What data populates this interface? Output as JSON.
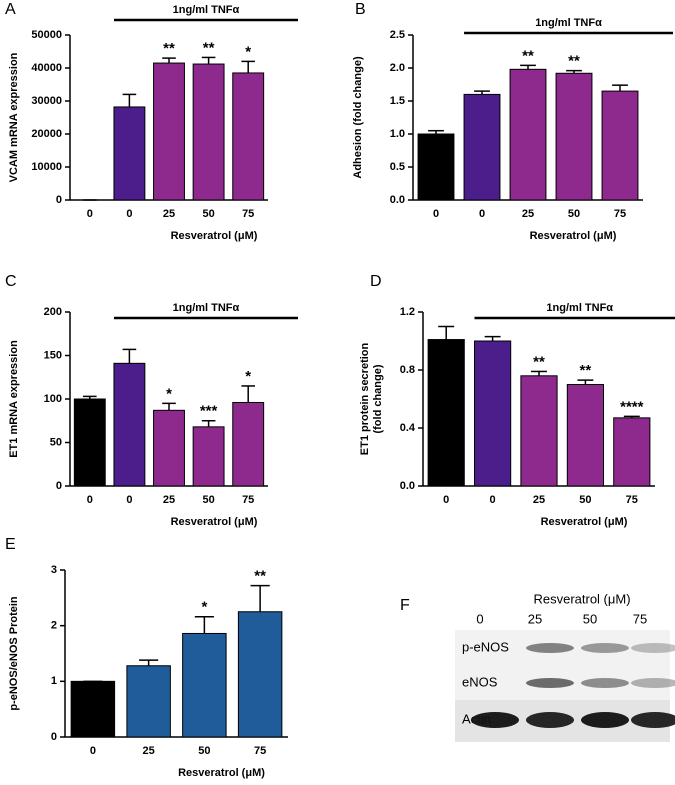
{
  "chart_data": [
    {
      "type": "bar",
      "panel": "A",
      "bracket_label": "1ng/ml TNFα",
      "xlabel": "Resveratrol (μM)",
      "ylabel": "VCAM mRNA expression",
      "categories": [
        "0",
        "0",
        "25",
        "50",
        "75"
      ],
      "values": [
        0,
        28200,
        41500,
        41200,
        38500
      ],
      "errors": [
        0,
        3800,
        1500,
        2000,
        3500
      ],
      "colors": [
        "#000000",
        "#4b1e8c",
        "#8e2a8e",
        "#8e2a8e",
        "#8e2a8e"
      ],
      "annotations": [
        null,
        null,
        "**",
        "**",
        "*"
      ],
      "ylim": [
        0,
        50000
      ],
      "yticks": [
        0,
        10000,
        20000,
        30000,
        40000,
        50000
      ]
    },
    {
      "type": "bar",
      "panel": "B",
      "bracket_label": "1ng/ml TNFα",
      "xlabel": "Resveratrol (μM)",
      "ylabel": "Adhesion (fold change)",
      "categories": [
        "0",
        "0",
        "25",
        "50",
        "75"
      ],
      "values": [
        1.0,
        1.6,
        1.98,
        1.92,
        1.65
      ],
      "errors": [
        0.05,
        0.05,
        0.06,
        0.04,
        0.09
      ],
      "colors": [
        "#000000",
        "#4b1e8c",
        "#8e2a8e",
        "#8e2a8e",
        "#8e2a8e"
      ],
      "annotations": [
        null,
        null,
        "**",
        "**",
        null
      ],
      "ylim": [
        0,
        2.5
      ],
      "yticks": [
        {
          "value": 0,
          "label": "0.0"
        },
        0.5,
        {
          "value": 1,
          "label": "1.0"
        },
        1.5,
        {
          "value": 2,
          "label": "2.0"
        },
        2.5
      ]
    },
    {
      "type": "bar",
      "panel": "C",
      "bracket_label": "1ng/ml TNFα",
      "xlabel": "Resveratrol (μM)",
      "ylabel": "ET1 mRNA expression",
      "categories": [
        "0",
        "0",
        "25",
        "50",
        "75"
      ],
      "values": [
        100,
        141,
        87,
        68,
        96
      ],
      "errors": [
        3,
        16,
        8,
        7,
        19
      ],
      "colors": [
        "#000000",
        "#4b1e8c",
        "#8e2a8e",
        "#8e2a8e",
        "#8e2a8e"
      ],
      "annotations": [
        null,
        null,
        "*",
        "***",
        "*"
      ],
      "ylim": [
        0,
        200
      ],
      "yticks": [
        0,
        50,
        100,
        150,
        200
      ]
    },
    {
      "type": "bar",
      "panel": "D",
      "bracket_label": "1ng/ml TNFα",
      "xlabel": "Resveratrol (μM)",
      "ylabel": [
        "ET1 protein secretion",
        "(fold change)"
      ],
      "categories": [
        "0",
        "0",
        "25",
        "50",
        "75"
      ],
      "values": [
        1.01,
        1.0,
        0.76,
        0.7,
        0.47
      ],
      "errors": [
        0.09,
        0.03,
        0.03,
        0.03,
        0.01
      ],
      "colors": [
        "#000000",
        "#4b1e8c",
        "#8e2a8e",
        "#8e2a8e",
        "#8e2a8e"
      ],
      "annotations": [
        null,
        null,
        "**",
        "**",
        "****"
      ],
      "ylim": [
        0,
        1.2
      ],
      "yticks": [
        {
          "value": 0,
          "label": "0.0"
        },
        0.4,
        0.8,
        1.2
      ]
    },
    {
      "type": "bar",
      "panel": "E",
      "xlabel": "Resveratrol (μM)",
      "ylabel": "p-eNOS/eNOS Protein",
      "categories": [
        "0",
        "25",
        "50",
        "75"
      ],
      "values": [
        1.0,
        1.28,
        1.86,
        2.25
      ],
      "errors": [
        0,
        0.1,
        0.3,
        0.47
      ],
      "colors": [
        "#000000",
        "#1f5c99",
        "#1f5c99",
        "#1f5c99"
      ],
      "annotations": [
        null,
        null,
        "*",
        "**"
      ],
      "ylim": [
        0,
        3
      ],
      "yticks": [
        0,
        1,
        2,
        3
      ]
    }
  ],
  "blot": {
    "panel": "F",
    "title": "Resveratrol (μM)",
    "lanes": [
      "0",
      "25",
      "50",
      "75"
    ],
    "rows": [
      "p-eNOS",
      "eNOS",
      "Actin"
    ]
  }
}
